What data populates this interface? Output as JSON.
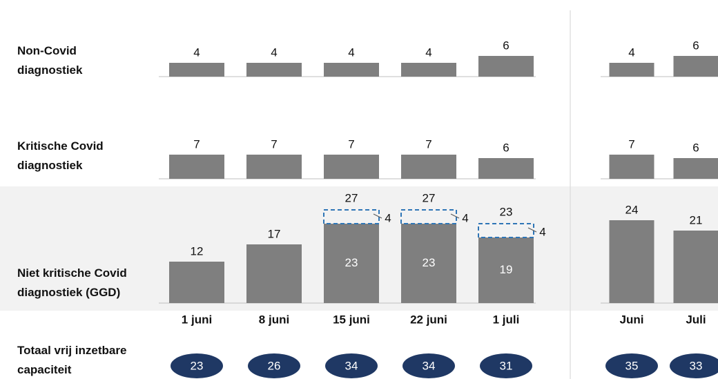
{
  "chart_data": {
    "type": "bar",
    "categories": [
      "1 juni",
      "8 juni",
      "15 juni",
      "22 juni",
      "1 juli"
    ],
    "month_categories": [
      "Juni",
      "Juli"
    ],
    "color": "#7f7f7f",
    "extra_color": "#2e75b6",
    "rows": [
      {
        "name": "Non-Covid\ndiagnostiek",
        "values": [
          4,
          4,
          4,
          4,
          6
        ],
        "month_values": [
          4,
          6
        ]
      },
      {
        "name": "Kritische Covid\ndiagnostiek",
        "values": [
          7,
          7,
          7,
          7,
          6
        ],
        "month_values": [
          7,
          6
        ]
      },
      {
        "name": "Niet kritische Covid\ndiagnostiek (GGD)",
        "values": [
          12,
          17,
          23,
          23,
          19
        ],
        "extra": [
          null,
          null,
          4,
          4,
          4
        ],
        "totals": [
          null,
          null,
          27,
          27,
          23
        ],
        "month_values": [
          24,
          21
        ]
      }
    ],
    "capacity": {
      "name": "Totaal vrij inzetbare\ncapaciteit",
      "color": "#1f3864",
      "values": [
        23,
        26,
        34,
        34,
        31
      ],
      "month_values": [
        35,
        33
      ]
    }
  }
}
